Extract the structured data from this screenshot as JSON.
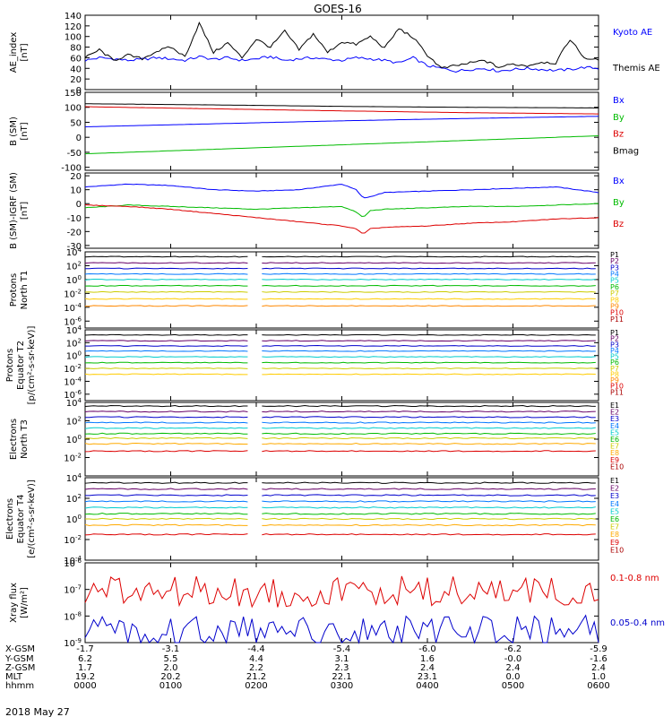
{
  "title": "GOES-16",
  "date": "2018 May 27",
  "chart_data": [
    {
      "id": "ae",
      "type": "line",
      "ylabel": [
        "AE_index",
        "[nT]"
      ],
      "ylim": [
        0,
        140
      ],
      "yticks": [
        "0",
        "20",
        "40",
        "60",
        "80",
        "100",
        "120",
        "140"
      ],
      "ytick_values": [
        0,
        20,
        40,
        60,
        80,
        100,
        120,
        140
      ],
      "log": false,
      "series": [
        {
          "name": "Kyoto AE",
          "color": "#0000ff",
          "x": [
            0,
            10,
            20,
            30,
            40,
            50,
            60,
            70,
            80,
            90,
            100,
            110,
            120,
            130,
            140,
            150,
            160,
            170,
            180,
            190,
            200,
            210,
            220,
            230,
            240,
            250,
            260,
            270,
            280,
            290,
            300,
            310,
            320,
            330,
            340,
            350,
            360
          ],
          "y": [
            55,
            60,
            58,
            55,
            57,
            60,
            58,
            55,
            62,
            57,
            60,
            55,
            58,
            62,
            55,
            58,
            60,
            57,
            55,
            60,
            58,
            55,
            50,
            60,
            45,
            40,
            35,
            38,
            40,
            35,
            38,
            40,
            38,
            36,
            38,
            42,
            40
          ]
        },
        {
          "name": "Themis AE",
          "color": "#000000",
          "x": [
            0,
            10,
            20,
            30,
            40,
            50,
            60,
            70,
            80,
            90,
            100,
            110,
            120,
            130,
            140,
            150,
            160,
            170,
            180,
            190,
            200,
            210,
            220,
            230,
            240,
            250,
            260,
            270,
            280,
            290,
            300,
            310,
            320,
            330,
            340,
            350,
            360
          ],
          "y": [
            60,
            75,
            55,
            65,
            58,
            72,
            80,
            62,
            125,
            70,
            88,
            60,
            95,
            80,
            110,
            75,
            105,
            70,
            90,
            85,
            100,
            78,
            115,
            98,
            65,
            40,
            45,
            50,
            55,
            42,
            48,
            45,
            52,
            50,
            95,
            60,
            55
          ]
        }
      ]
    },
    {
      "id": "bsm",
      "type": "line",
      "ylabel": [
        "B (SM)",
        "[nT]"
      ],
      "ylim": [
        -110,
        150
      ],
      "yticks": [
        "-100",
        "-50",
        "0",
        "50",
        "100",
        "150"
      ],
      "ytick_values": [
        -100,
        -50,
        0,
        50,
        100,
        150
      ],
      "log": false,
      "series": [
        {
          "name": "Bx",
          "color": "#0000ff",
          "x": [
            0,
            90,
            180,
            270,
            360
          ],
          "y": [
            35,
            45,
            55,
            63,
            70
          ]
        },
        {
          "name": "By",
          "color": "#00bb00",
          "x": [
            0,
            90,
            180,
            270,
            360
          ],
          "y": [
            -55,
            -40,
            -25,
            -10,
            5
          ]
        },
        {
          "name": "Bz",
          "color": "#dd0000",
          "x": [
            0,
            90,
            180,
            270,
            360
          ],
          "y": [
            102,
            95,
            88,
            82,
            78
          ]
        },
        {
          "name": "Bmag",
          "color": "#000000",
          "x": [
            0,
            90,
            180,
            270,
            360
          ],
          "y": [
            112,
            108,
            103,
            100,
            98
          ]
        }
      ]
    },
    {
      "id": "bdiff",
      "type": "line",
      "ylabel": [
        "B (SM)-IGRF (SM)",
        "[nT]"
      ],
      "ylim": [
        -32,
        22
      ],
      "yticks": [
        "-30",
        "-20",
        "-10",
        "0",
        "10",
        "20"
      ],
      "ytick_values": [
        -30,
        -20,
        -10,
        0,
        10,
        20
      ],
      "log": false,
      "series": [
        {
          "name": "Bx",
          "color": "#0000ff",
          "x": [
            0,
            30,
            60,
            90,
            120,
            150,
            180,
            190,
            195,
            200,
            210,
            240,
            270,
            300,
            330,
            360
          ],
          "y": [
            12,
            14,
            13,
            10,
            9,
            10,
            14,
            10,
            4,
            5,
            8,
            9,
            10,
            11,
            12,
            8
          ]
        },
        {
          "name": "By",
          "color": "#00bb00",
          "x": [
            0,
            30,
            60,
            90,
            120,
            150,
            180,
            190,
            195,
            200,
            210,
            240,
            270,
            300,
            330,
            360
          ],
          "y": [
            -3,
            -1,
            -2,
            -3,
            -4,
            -3,
            -2,
            -6,
            -10,
            -5,
            -4,
            -3,
            -2,
            -2,
            -1,
            0
          ]
        },
        {
          "name": "Bz",
          "color": "#dd0000",
          "x": [
            0,
            30,
            60,
            90,
            120,
            150,
            180,
            190,
            195,
            200,
            210,
            240,
            270,
            300,
            330,
            360
          ],
          "y": [
            -1,
            -2,
            -4,
            -7,
            -10,
            -13,
            -16,
            -18,
            -22,
            -18,
            -17,
            -16,
            -14,
            -13,
            -11,
            -10
          ]
        }
      ]
    },
    {
      "id": "protons_t1",
      "type": "line",
      "ylabel": [
        "Protons",
        "North T1"
      ],
      "ylim_exp": [
        -7,
        4
      ],
      "yticks": [
        "10^4",
        "10^2",
        "10^0",
        "10^-2",
        "10^-4",
        "10^-6"
      ],
      "ytick_values": [
        4,
        2,
        0,
        -2,
        -4,
        -6
      ],
      "log": true,
      "gap": [
        116,
        124
      ],
      "series": [
        {
          "name": "P1",
          "color": "#000000",
          "level": 3.3
        },
        {
          "name": "P2",
          "color": "#660066",
          "level": 2.4
        },
        {
          "name": "P3",
          "color": "#0000cc",
          "level": 1.6
        },
        {
          "name": "P4",
          "color": "#0077ff",
          "level": 0.8
        },
        {
          "name": "P5",
          "color": "#00cccc",
          "level": 0.0
        },
        {
          "name": "P6",
          "color": "#00bb00",
          "level": -0.9
        },
        {
          "name": "P7",
          "color": "#cccc00",
          "level": -1.8
        },
        {
          "name": "P8",
          "color": "#ffcc00",
          "level": -2.8
        },
        {
          "name": "P9",
          "color": "#ff8800",
          "level": -3.8
        },
        {
          "name": "P10",
          "color": "#dd0000",
          "level": -99
        },
        {
          "name": "P11",
          "color": "#aa0000",
          "level": -99
        }
      ]
    },
    {
      "id": "protons_t2",
      "type": "line",
      "ylabel": [
        "Protons",
        "Equator T2",
        "[p/(cm²-s-sr-keV)]"
      ],
      "ylim_exp": [
        -7,
        4
      ],
      "yticks": [
        "10^4",
        "10^2",
        "10^0",
        "10^-2",
        "10^-4",
        "10^-6"
      ],
      "ytick_values": [
        4,
        2,
        0,
        -2,
        -4,
        -6
      ],
      "log": true,
      "gap": [
        116,
        124
      ],
      "series": [
        {
          "name": "P1",
          "color": "#000000",
          "level": 3.2
        },
        {
          "name": "P2",
          "color": "#660066",
          "level": 2.3
        },
        {
          "name": "P3",
          "color": "#0000cc",
          "level": 1.5
        },
        {
          "name": "P4",
          "color": "#0077ff",
          "level": 0.7
        },
        {
          "name": "P5",
          "color": "#00cccc",
          "level": -0.2
        },
        {
          "name": "P6",
          "color": "#00bb00",
          "level": -1.1
        },
        {
          "name": "P7",
          "color": "#cccc00",
          "level": -2.0
        },
        {
          "name": "P8",
          "color": "#ffcc00",
          "level": -2.9
        },
        {
          "name": "P9",
          "color": "#ff8800",
          "level": -99
        },
        {
          "name": "P10",
          "color": "#dd0000",
          "level": -99
        },
        {
          "name": "P11",
          "color": "#aa0000",
          "level": -99
        }
      ]
    },
    {
      "id": "electrons_t3",
      "type": "line",
      "ylabel": [
        "Electrons",
        "North T3"
      ],
      "ylim_exp": [
        -4,
        4
      ],
      "yticks": [
        "10^4",
        "10^2",
        "10^0",
        "10^-2"
      ],
      "ytick_values": [
        4,
        2,
        0,
        -2
      ],
      "log": true,
      "gap": [
        116,
        124
      ],
      "series": [
        {
          "name": "E1",
          "color": "#000000",
          "level": 3.6
        },
        {
          "name": "E2",
          "color": "#660066",
          "level": 3.0
        },
        {
          "name": "E3",
          "color": "#0000cc",
          "level": 2.4
        },
        {
          "name": "E4",
          "color": "#0077ff",
          "level": 1.8
        },
        {
          "name": "E5",
          "color": "#00cccc",
          "level": 1.2
        },
        {
          "name": "E6",
          "color": "#00bb00",
          "level": 0.6
        },
        {
          "name": "E7",
          "color": "#cccc00",
          "level": 0.1
        },
        {
          "name": "E8",
          "color": "#ffaa00",
          "level": -0.5
        },
        {
          "name": "E9",
          "color": "#dd0000",
          "level": -1.3
        },
        {
          "name": "E10",
          "color": "#aa0000",
          "level": -99
        }
      ]
    },
    {
      "id": "electrons_t4",
      "type": "line",
      "ylabel": [
        "Electrons",
        "Equator T4",
        "[e/(cm²-s-sr-keV)]"
      ],
      "ylim_exp": [
        -4,
        4
      ],
      "yticks": [
        "10^4",
        "10^2",
        "10^0",
        "10^-2",
        "10^-4"
      ],
      "ytick_values": [
        4,
        2,
        0,
        -2,
        -4
      ],
      "log": true,
      "gap": [
        116,
        124
      ],
      "series": [
        {
          "name": "E1",
          "color": "#000000",
          "level": 3.5
        },
        {
          "name": "E2",
          "color": "#660066",
          "level": 2.9
        },
        {
          "name": "E3",
          "color": "#0000cc",
          "level": 2.3
        },
        {
          "name": "E4",
          "color": "#0077ff",
          "level": 1.7
        },
        {
          "name": "E5",
          "color": "#00cccc",
          "level": 1.1
        },
        {
          "name": "E6",
          "color": "#00bb00",
          "level": 0.5
        },
        {
          "name": "E7",
          "color": "#cccc00",
          "level": 0.0
        },
        {
          "name": "E8",
          "color": "#ffaa00",
          "level": -0.6
        },
        {
          "name": "E9",
          "color": "#dd0000",
          "level": -1.5
        },
        {
          "name": "E10",
          "color": "#aa0000",
          "level": -99
        }
      ]
    },
    {
      "id": "xray",
      "type": "line",
      "ylabel": [
        "Xray flux",
        "[W/m²]"
      ],
      "ylim_exp": [
        -9,
        -6
      ],
      "yticks": [
        "10^-6",
        "10^-7",
        "10^-8",
        "10^-9"
      ],
      "ytick_values": [
        -6,
        -7,
        -8,
        -9
      ],
      "log": true,
      "series": [
        {
          "name": "0.1-0.8 nm",
          "color": "#dd0000",
          "level": -7.1,
          "peak_x": 55,
          "peak": -6.8
        },
        {
          "name": "0.05-0.4 nm",
          "color": "#0000cc",
          "level": -8.6,
          "peak_x": 55,
          "peak": -8.4
        }
      ]
    }
  ],
  "xaxis": {
    "ticks": [
      0,
      60,
      120,
      180,
      240,
      300,
      360
    ],
    "rows": [
      {
        "label": "X-GSM",
        "values": [
          "-1.7",
          "-3.1",
          "-4.4",
          "-5.4",
          "-6.0",
          "-6.2",
          "-5.9"
        ]
      },
      {
        "label": "Y-GSM",
        "values": [
          "6.2",
          "5.5",
          "4.4",
          "3.1",
          "1.6",
          "-0.0",
          "-1.6"
        ]
      },
      {
        "label": "Z-GSM",
        "values": [
          "1.7",
          "2.0",
          "2.2",
          "2.3",
          "2.4",
          "2.4",
          "2.4"
        ]
      },
      {
        "label": "MLT",
        "values": [
          "19.2",
          "20.2",
          "21.2",
          "22.1",
          "23.1",
          "0.0",
          "1.0"
        ]
      },
      {
        "label": "hhmm",
        "values": [
          "0000",
          "0100",
          "0200",
          "0300",
          "0400",
          "0500",
          "0600"
        ]
      }
    ]
  }
}
